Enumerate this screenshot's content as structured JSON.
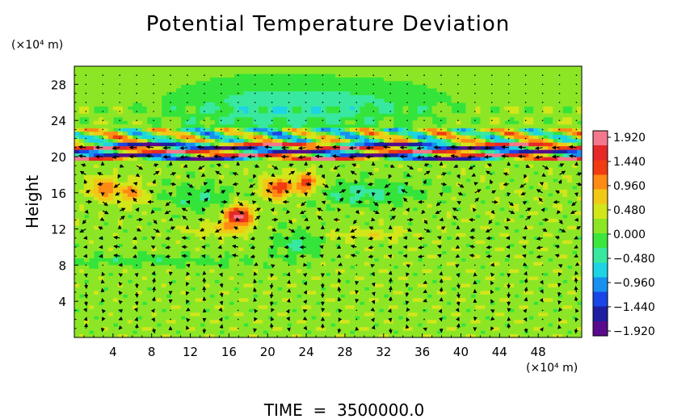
{
  "chart_data": {
    "type": "heatmap",
    "title": "Potential Temperature Deviation",
    "ylabel": "Height",
    "x_units": "(×10⁴ m)",
    "y_units": "(×10⁴ m)",
    "footer": "TIME  =  3500000.0",
    "xlim": [
      0,
      52.5
    ],
    "ylim": [
      0,
      30
    ],
    "xticks": [
      4,
      8,
      12,
      16,
      20,
      24,
      28,
      32,
      36,
      40,
      44,
      48
    ],
    "yticks": [
      4,
      8,
      12,
      16,
      20,
      24,
      28
    ],
    "overlay": "wind vector arrows",
    "colorbar": {
      "ticks": [
        1.92,
        1.44,
        0.96,
        0.48,
        0.0,
        -0.48,
        -0.96,
        -1.44,
        -1.92
      ],
      "tick_labels": [
        "1.920",
        "1.440",
        "0.960",
        "0.480",
        "0.000",
        "−0.480",
        "−0.960",
        "−1.440",
        "−1.920"
      ],
      "colors": [
        "#5a0a8c",
        "#1e1ea0",
        "#1a46e6",
        "#1890f0",
        "#1cd4e4",
        "#38e8a0",
        "#3ce63c",
        "#8ce626",
        "#d2e61a",
        "#f2c816",
        "#ff8a14",
        "#f03c10",
        "#e62828",
        "#f4788c"
      ]
    },
    "features": {
      "background_value": 0.15,
      "band_tropopause_km": [
        19.5,
        21.5
      ],
      "warm_cells": [
        {
          "x": 17,
          "y": 13.5,
          "value": 1.6
        },
        {
          "x": 21,
          "y": 16.5,
          "value": 1.2
        },
        {
          "x": 24,
          "y": 17,
          "value": 1.1
        },
        {
          "x": 3,
          "y": 16.5,
          "value": 0.9
        },
        {
          "x": 6,
          "y": 16,
          "value": 0.8
        }
      ]
    }
  }
}
